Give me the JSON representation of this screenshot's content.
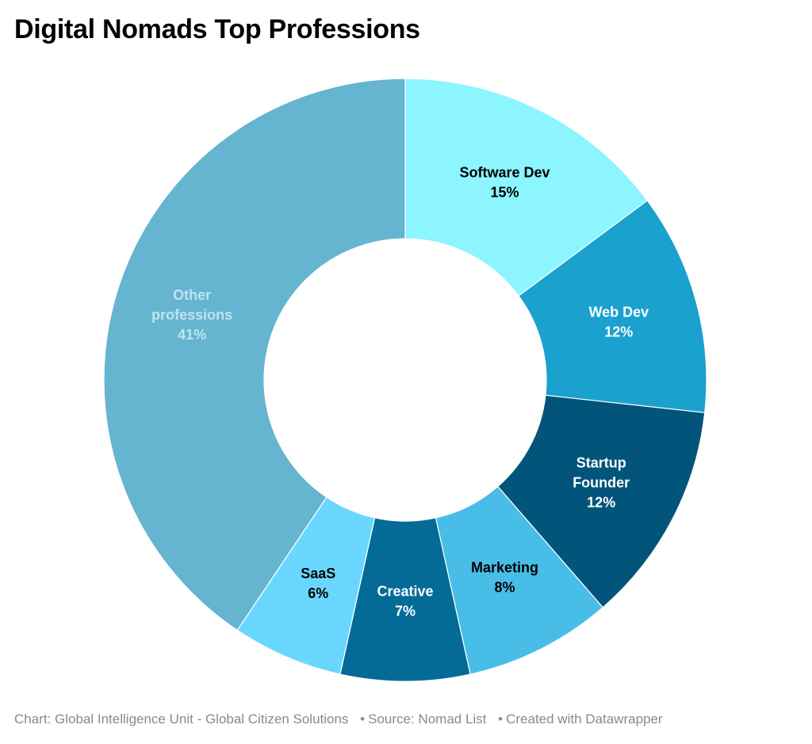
{
  "header": {
    "title": "Digital Nomads Top Professions"
  },
  "footer": {
    "chart_credit": "Chart: Global Intelligence Unit - Global Citizen Solutions",
    "source": "Source: Nomad List",
    "created_with": "Created with Datawrapper",
    "separator": "•"
  },
  "chart_data": {
    "type": "pie",
    "variant": "donut",
    "title": "Digital Nomads Top Professions",
    "categories": [
      "Software Dev",
      "Web Dev",
      "Startup Founder",
      "Marketing",
      "Creative",
      "SaaS",
      "Other professions"
    ],
    "values": [
      15,
      12,
      12,
      8,
      7,
      6,
      41
    ],
    "unit": "%",
    "slices": [
      {
        "label": "Software Dev",
        "value": 15,
        "display": "15%",
        "color": "#8cf5ff",
        "text_color": "#000000",
        "label_lines": [
          "Software Dev"
        ]
      },
      {
        "label": "Web Dev",
        "value": 12,
        "display": "12%",
        "color": "#1aa1ce",
        "text_color": "#ffffff",
        "label_lines": [
          "Web Dev"
        ]
      },
      {
        "label": "Startup Founder",
        "value": 12,
        "display": "12%",
        "color": "#02547a",
        "text_color": "#ffffff",
        "label_lines": [
          "Startup",
          "Founder"
        ]
      },
      {
        "label": "Marketing",
        "value": 8,
        "display": "8%",
        "color": "#48bde8",
        "text_color": "#000000",
        "label_lines": [
          "Marketing"
        ]
      },
      {
        "label": "Creative",
        "value": 7,
        "display": "7%",
        "color": "#046b98",
        "text_color": "#ffffff",
        "label_lines": [
          "Creative"
        ]
      },
      {
        "label": "SaaS",
        "value": 6,
        "display": "6%",
        "color": "#69d7fd",
        "text_color": "#000000",
        "label_lines": [
          "SaaS"
        ]
      },
      {
        "label": "Other professions",
        "value": 41,
        "display": "41%",
        "color": "#65b4d0",
        "text_color": "#bfe4f0",
        "label_lines": [
          "Other",
          "professions"
        ]
      }
    ],
    "start_angle_deg": 0,
    "direction": "clockwise",
    "legend": "none (direct labels)",
    "source": "Nomad List"
  }
}
